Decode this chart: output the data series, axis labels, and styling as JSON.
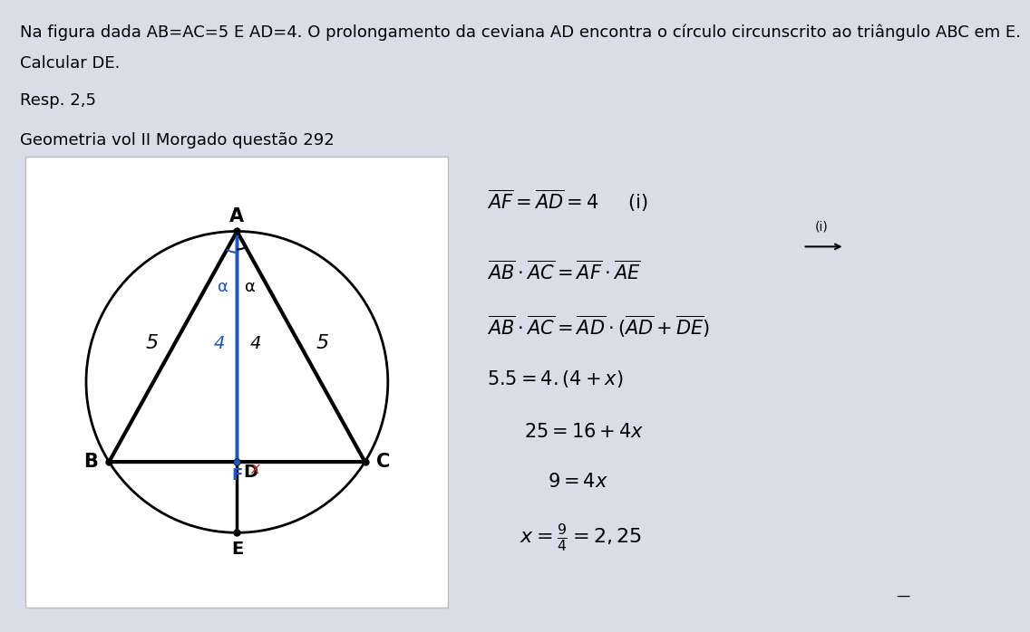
{
  "background_color": "#d8dde8",
  "header_line1": "Na figura dada AB=AC=5 E AD=4. O prolongamento da ceviana AD encontra o circulo circunscrito ao triangulo ABC em E.",
  "header_line2": "Calcular DE.",
  "resp_text": "Resp. 2,5",
  "source_text": "Geometria vol II Morgado questao 292",
  "header_fontsize": 13,
  "diagram_bg": "#ffffff",
  "blue_color": "#1a55cc",
  "red_color": "#cc2222",
  "black_color": "#111111",
  "ang_B_deg": 212,
  "ang_C_deg": 328
}
